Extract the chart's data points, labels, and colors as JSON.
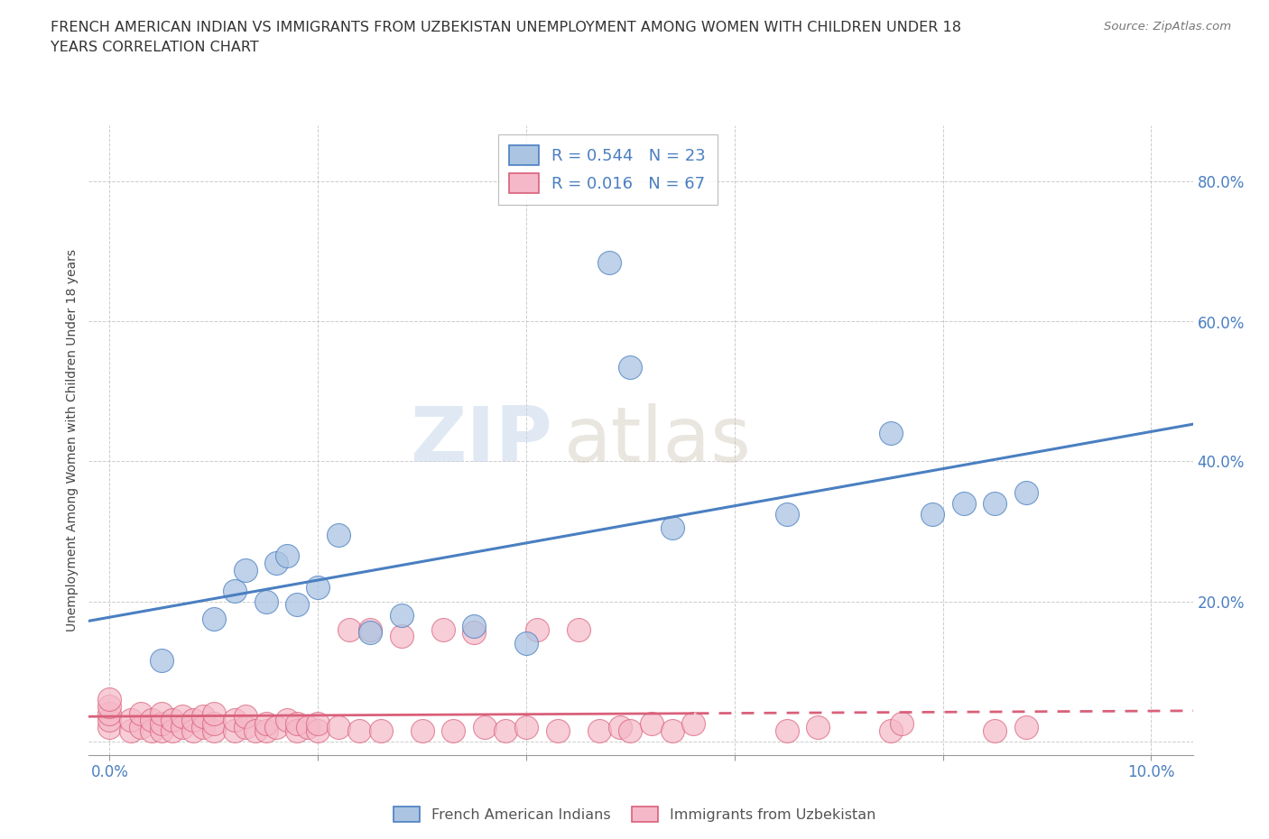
{
  "title_line1": "FRENCH AMERICAN INDIAN VS IMMIGRANTS FROM UZBEKISTAN UNEMPLOYMENT AMONG WOMEN WITH CHILDREN UNDER 18",
  "title_line2": "YEARS CORRELATION CHART",
  "source": "Source: ZipAtlas.com",
  "ylabel": "Unemployment Among Women with Children Under 18 years",
  "color_blue": "#aac4e2",
  "color_pink": "#f5b8c8",
  "line_blue": "#4a7fc1",
  "line_pink": "#d9607a",
  "watermark_zip": "ZIP",
  "watermark_atlas": "atlas",
  "legend_text1": "R = 0.544   N = 23",
  "legend_text2": "R = 0.016   N = 67",
  "blue_x": [
    0.005,
    0.01,
    0.012,
    0.013,
    0.015,
    0.016,
    0.017,
    0.018,
    0.02,
    0.022,
    0.025,
    0.028,
    0.035,
    0.04,
    0.048,
    0.05,
    0.054,
    0.065,
    0.075,
    0.079,
    0.082,
    0.085,
    0.088
  ],
  "blue_y": [
    0.115,
    0.175,
    0.215,
    0.245,
    0.2,
    0.255,
    0.265,
    0.195,
    0.22,
    0.295,
    0.155,
    0.18,
    0.165,
    0.14,
    0.685,
    0.535,
    0.305,
    0.325,
    0.44,
    0.325,
    0.34,
    0.34,
    0.355
  ],
  "pink_x": [
    0.0,
    0.0,
    0.0,
    0.0,
    0.0,
    0.002,
    0.002,
    0.003,
    0.003,
    0.004,
    0.004,
    0.005,
    0.005,
    0.005,
    0.006,
    0.006,
    0.007,
    0.007,
    0.008,
    0.008,
    0.009,
    0.009,
    0.01,
    0.01,
    0.01,
    0.012,
    0.012,
    0.013,
    0.013,
    0.014,
    0.015,
    0.015,
    0.016,
    0.017,
    0.018,
    0.018,
    0.019,
    0.02,
    0.02,
    0.022,
    0.023,
    0.024,
    0.025,
    0.026,
    0.028,
    0.03,
    0.032,
    0.033,
    0.035,
    0.036,
    0.038,
    0.04,
    0.041,
    0.043,
    0.045,
    0.047,
    0.049,
    0.05,
    0.052,
    0.054,
    0.056,
    0.065,
    0.068,
    0.075,
    0.076,
    0.085,
    0.088
  ],
  "pink_y": [
    0.02,
    0.03,
    0.04,
    0.05,
    0.06,
    0.015,
    0.03,
    0.02,
    0.04,
    0.015,
    0.03,
    0.015,
    0.025,
    0.04,
    0.015,
    0.03,
    0.02,
    0.035,
    0.015,
    0.03,
    0.02,
    0.035,
    0.015,
    0.025,
    0.04,
    0.015,
    0.03,
    0.02,
    0.035,
    0.015,
    0.015,
    0.025,
    0.02,
    0.03,
    0.015,
    0.025,
    0.02,
    0.015,
    0.025,
    0.02,
    0.16,
    0.015,
    0.16,
    0.015,
    0.15,
    0.015,
    0.16,
    0.015,
    0.155,
    0.02,
    0.015,
    0.02,
    0.16,
    0.015,
    0.16,
    0.015,
    0.02,
    0.015,
    0.025,
    0.015,
    0.025,
    0.015,
    0.02,
    0.015,
    0.025,
    0.015,
    0.02
  ]
}
